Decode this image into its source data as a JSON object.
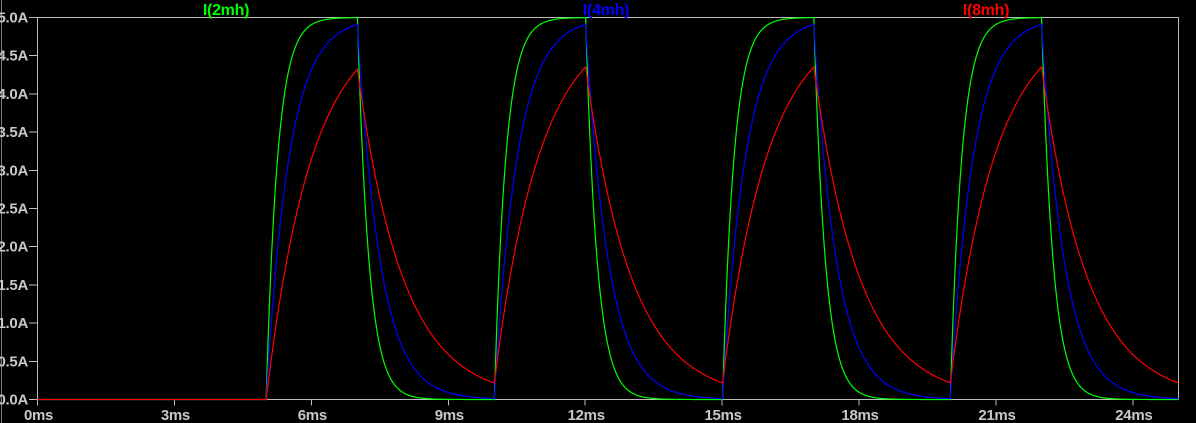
{
  "window": {
    "pane_name": "waveform-viewer",
    "background_color": "#000000",
    "frame_color": "#bcbcbc",
    "text_color": "#c8c8c8",
    "left_divider_color": "#7d7d7d"
  },
  "chart_data": {
    "type": "line",
    "title": "",
    "grid": false,
    "legend_position": "top",
    "x_axis": {
      "unit": "ms",
      "min": 0,
      "max": 25,
      "tick_step": 3,
      "tick_labels": [
        "0ms",
        "3ms",
        "6ms",
        "9ms",
        "12ms",
        "15ms",
        "18ms",
        "21ms",
        "24ms"
      ]
    },
    "y_axis": {
      "unit": "A",
      "min": 0,
      "max": 5,
      "tick_step": 0.5,
      "tick_labels": [
        "0.0A",
        "0.5A",
        "1.0A",
        "1.5A",
        "2.0A",
        "2.5A",
        "3.0A",
        "3.5A",
        "4.0A",
        "4.5A",
        "5.0A"
      ]
    },
    "drive_pulse": {
      "amplitude_A": 5,
      "first_rise_ms": 5,
      "on_time_ms": 2,
      "period_ms": 5
    },
    "series": [
      {
        "name": "I(2mh)",
        "color": "#00ff00",
        "inductance_mH": 2,
        "tau_ms": 0.25,
        "approx_peak_A": 5.0,
        "approx_min_A": 0.0
      },
      {
        "name": "I(4mh)",
        "color": "#0000ff",
        "inductance_mH": 4,
        "tau_ms": 0.5,
        "approx_peak_A": 4.91,
        "approx_min_A": 0.01
      },
      {
        "name": "I(8mh)",
        "color": "#ff0000",
        "inductance_mH": 8,
        "tau_ms": 1.0,
        "approx_peak_A": 4.33,
        "approx_min_A": 0.22
      }
    ]
  }
}
